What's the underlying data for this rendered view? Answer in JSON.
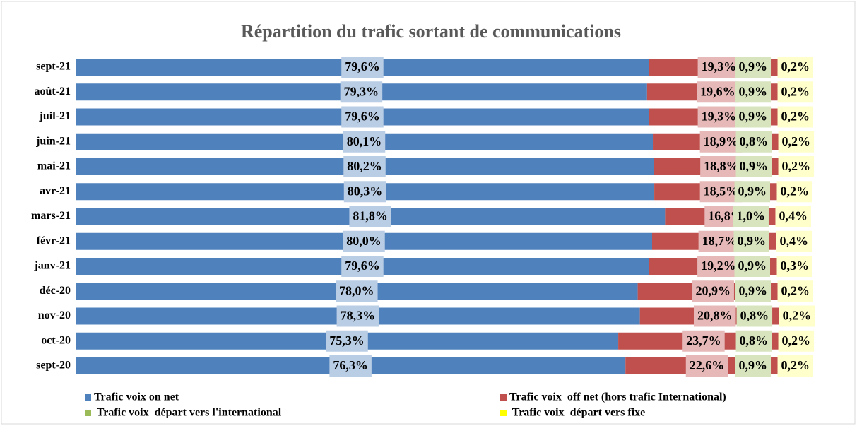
{
  "chart_data": {
    "type": "stacked-bar-horizontal",
    "title": "Répartition du trafic sortant de communications",
    "categories": [
      "sept-21",
      "août-21",
      "juil-21",
      "juin-21",
      "mai-21",
      "avr-21",
      "mars-21",
      "févr-21",
      "janv-21",
      "déc-20",
      "nov-20",
      "oct-20",
      "sept-20"
    ],
    "xlim": [
      0,
      100
    ],
    "legend": "bottom",
    "series": [
      {
        "name": "Trafic voix on net",
        "color": "#4f81bd",
        "label_bg": "#b9cde5",
        "values": [
          79.6,
          79.3,
          79.6,
          80.1,
          80.2,
          80.3,
          81.8,
          80.0,
          79.6,
          78.0,
          78.3,
          75.3,
          76.3
        ],
        "value_labels": [
          "79,6%",
          "79,3%",
          "79,6%",
          "80,1%",
          "80,2%",
          "80,3%",
          "81,8%",
          "80,0%",
          "79,6%",
          "78,0%",
          "78,3%",
          "75,3%",
          "76,3%"
        ]
      },
      {
        "name": "Trafic voix  off net (hors trafic International)",
        "color": "#c0504d",
        "label_bg": "#e6b9b8",
        "values": [
          19.3,
          19.6,
          19.3,
          18.9,
          18.8,
          18.5,
          16.8,
          18.7,
          19.2,
          20.9,
          20.8,
          23.7,
          22.6
        ],
        "value_labels": [
          "19,3%",
          "19,6%",
          "19,3%",
          "18,9%",
          "18,8%",
          "18,5%",
          "16,8%",
          "18,7%",
          "19,2%",
          "20,9%",
          "20,8%",
          "23,7%",
          "22,6%"
        ]
      },
      {
        "name": " Trafic voix  départ vers l'international",
        "color": "#9bbb59",
        "label_bg": "#d7e4bd",
        "values": [
          0.9,
          0.9,
          0.9,
          0.8,
          0.9,
          0.9,
          1.0,
          0.9,
          0.9,
          0.9,
          0.8,
          0.8,
          0.9
        ],
        "value_labels": [
          "0,9%",
          "0,9%",
          "0,9%",
          "0,8%",
          "0,9%",
          "0,9%",
          "1,0%",
          "0,9%",
          "0,9%",
          "0,9%",
          "0,8%",
          "0,8%",
          "0,9%"
        ]
      },
      {
        "name": " Trafic voix  départ vers fixe",
        "color": "#ffff00",
        "label_bg": "#ffffcc",
        "values": [
          0.2,
          0.2,
          0.2,
          0.2,
          0.2,
          0.2,
          0.4,
          0.4,
          0.3,
          0.2,
          0.2,
          0.2,
          0.2
        ],
        "value_labels": [
          "0,2%",
          "0,2%",
          "0,2%",
          "0,2%",
          "0,2%",
          "0,2%",
          "0,4%",
          "0,4%",
          "0,3%",
          "0,2%",
          "0,2%",
          "0,2%",
          "0,2%"
        ]
      }
    ]
  }
}
